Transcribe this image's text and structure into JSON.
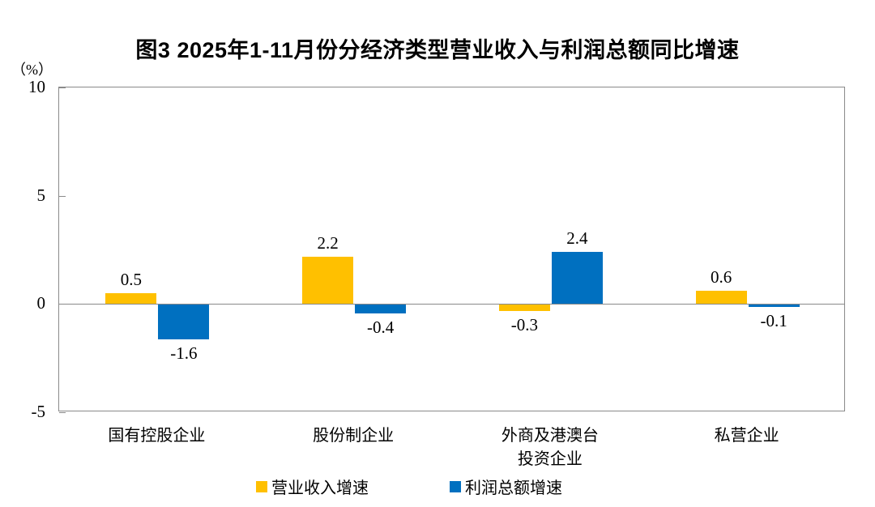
{
  "title": "图3 2025年1-11月份分经济类型营业收入与利润总额同比增速",
  "y_axis": {
    "unit_label": "（%）",
    "ticks": [
      10,
      5,
      0,
      -5
    ]
  },
  "legend": [
    {
      "label": "营业收入增速",
      "color": "#FFC000"
    },
    {
      "label": "利润总额增速",
      "color": "#0070C0"
    }
  ],
  "colors": {
    "revenue": "#FFC000",
    "profit": "#0070C0",
    "axis": "#8a8a8a"
  },
  "chart_data": {
    "type": "bar",
    "title": "图3 2025年1-11月份分经济类型营业收入与利润总额同比增速",
    "categories": [
      "国有控股企业",
      "股份制企业",
      "外商及港澳台\n投资企业",
      "私营企业"
    ],
    "series": [
      {
        "name": "营业收入增速",
        "color": "#FFC000",
        "values": [
          0.5,
          2.2,
          -0.3,
          0.6
        ]
      },
      {
        "name": "利润总额增速",
        "color": "#0070C0",
        "values": [
          -1.6,
          -0.4,
          2.4,
          -0.1
        ]
      }
    ],
    "xlabel": "",
    "ylabel": "（%）",
    "ylim": [
      -5,
      10
    ],
    "yticks": [
      10,
      5,
      0,
      -5
    ],
    "grid": false,
    "legend_position": "bottom",
    "data_labels": true
  }
}
